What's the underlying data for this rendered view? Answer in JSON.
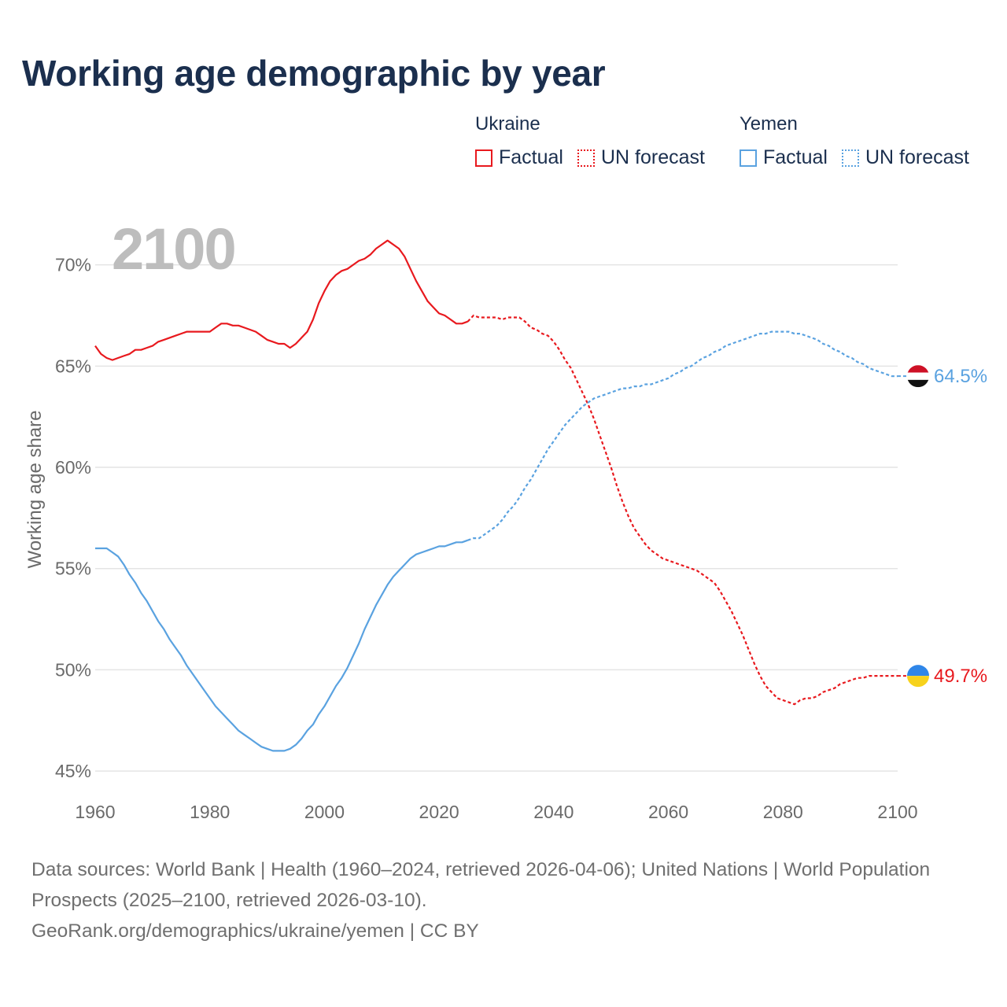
{
  "title": "Working age demographic by year",
  "legend": {
    "groups": [
      {
        "name": "Ukraine",
        "factual_label": "Factual",
        "forecast_label": "UN forecast",
        "color": "#e8191e"
      },
      {
        "name": "Yemen",
        "factual_label": "Factual",
        "forecast_label": "UN forecast",
        "color": "#5aa2e0"
      }
    ]
  },
  "year_watermark": "2100",
  "footer": {
    "line1": "Data sources: World Bank | Health (1960–2024, retrieved 2026-04-06); United Nations | World Population Prospects (2025–2100, retrieved 2026-03-10).",
    "line2": "GeoRank.org/demographics/ukraine/yemen | CC BY"
  },
  "chart_data": {
    "type": "line",
    "title": "Working age demographic by year",
    "xlabel": "",
    "ylabel": "Working age share",
    "xlim": [
      1960,
      2100
    ],
    "ylim": [
      44.5,
      71.5
    ],
    "x_ticks": [
      1960,
      1980,
      2000,
      2020,
      2040,
      2060,
      2080,
      2100
    ],
    "y_ticks": [
      45,
      50,
      55,
      60,
      65,
      70
    ],
    "y_tick_labels": [
      "45%",
      "50%",
      "55%",
      "60%",
      "65%",
      "70%"
    ],
    "grid": true,
    "forecast_start_year": 2025,
    "series": [
      {
        "name": "Ukraine",
        "color": "#e8191e",
        "end_label": "49.7%",
        "points": [
          [
            1960,
            66.0
          ],
          [
            1961,
            65.6
          ],
          [
            1962,
            65.4
          ],
          [
            1963,
            65.3
          ],
          [
            1964,
            65.4
          ],
          [
            1965,
            65.5
          ],
          [
            1966,
            65.6
          ],
          [
            1967,
            65.8
          ],
          [
            1968,
            65.8
          ],
          [
            1969,
            65.9
          ],
          [
            1970,
            66.0
          ],
          [
            1971,
            66.2
          ],
          [
            1972,
            66.3
          ],
          [
            1973,
            66.4
          ],
          [
            1974,
            66.5
          ],
          [
            1975,
            66.6
          ],
          [
            1976,
            66.7
          ],
          [
            1977,
            66.7
          ],
          [
            1978,
            66.7
          ],
          [
            1979,
            66.7
          ],
          [
            1980,
            66.7
          ],
          [
            1981,
            66.9
          ],
          [
            1982,
            67.1
          ],
          [
            1983,
            67.1
          ],
          [
            1984,
            67.0
          ],
          [
            1985,
            67.0
          ],
          [
            1986,
            66.9
          ],
          [
            1987,
            66.8
          ],
          [
            1988,
            66.7
          ],
          [
            1989,
            66.5
          ],
          [
            1990,
            66.3
          ],
          [
            1991,
            66.2
          ],
          [
            1992,
            66.1
          ],
          [
            1993,
            66.1
          ],
          [
            1994,
            65.9
          ],
          [
            1995,
            66.1
          ],
          [
            1996,
            66.4
          ],
          [
            1997,
            66.7
          ],
          [
            1998,
            67.3
          ],
          [
            1999,
            68.1
          ],
          [
            2000,
            68.7
          ],
          [
            2001,
            69.2
          ],
          [
            2002,
            69.5
          ],
          [
            2003,
            69.7
          ],
          [
            2004,
            69.8
          ],
          [
            2005,
            70.0
          ],
          [
            2006,
            70.2
          ],
          [
            2007,
            70.3
          ],
          [
            2008,
            70.5
          ],
          [
            2009,
            70.8
          ],
          [
            2010,
            71.0
          ],
          [
            2011,
            71.2
          ],
          [
            2012,
            71.0
          ],
          [
            2013,
            70.8
          ],
          [
            2014,
            70.4
          ],
          [
            2015,
            69.8
          ],
          [
            2016,
            69.2
          ],
          [
            2017,
            68.7
          ],
          [
            2018,
            68.2
          ],
          [
            2019,
            67.9
          ],
          [
            2020,
            67.6
          ],
          [
            2021,
            67.5
          ],
          [
            2022,
            67.3
          ],
          [
            2023,
            67.1
          ],
          [
            2024,
            67.1
          ],
          [
            2025,
            67.2
          ],
          [
            2026,
            67.5
          ],
          [
            2027,
            67.4
          ],
          [
            2028,
            67.4
          ],
          [
            2029,
            67.4
          ],
          [
            2030,
            67.4
          ],
          [
            2031,
            67.3
          ],
          [
            2032,
            67.4
          ],
          [
            2033,
            67.4
          ],
          [
            2034,
            67.4
          ],
          [
            2035,
            67.2
          ],
          [
            2036,
            66.9
          ],
          [
            2037,
            66.8
          ],
          [
            2038,
            66.6
          ],
          [
            2039,
            66.5
          ],
          [
            2040,
            66.2
          ],
          [
            2041,
            65.8
          ],
          [
            2042,
            65.3
          ],
          [
            2043,
            64.9
          ],
          [
            2044,
            64.3
          ],
          [
            2045,
            63.7
          ],
          [
            2046,
            63.1
          ],
          [
            2047,
            62.4
          ],
          [
            2048,
            61.6
          ],
          [
            2049,
            60.8
          ],
          [
            2050,
            60.0
          ],
          [
            2051,
            59.1
          ],
          [
            2052,
            58.3
          ],
          [
            2053,
            57.6
          ],
          [
            2054,
            57.0
          ],
          [
            2055,
            56.6
          ],
          [
            2056,
            56.2
          ],
          [
            2057,
            55.9
          ],
          [
            2058,
            55.7
          ],
          [
            2059,
            55.5
          ],
          [
            2060,
            55.4
          ],
          [
            2061,
            55.3
          ],
          [
            2062,
            55.2
          ],
          [
            2063,
            55.1
          ],
          [
            2064,
            55.0
          ],
          [
            2065,
            54.9
          ],
          [
            2066,
            54.7
          ],
          [
            2067,
            54.5
          ],
          [
            2068,
            54.3
          ],
          [
            2069,
            53.9
          ],
          [
            2070,
            53.4
          ],
          [
            2071,
            52.9
          ],
          [
            2072,
            52.3
          ],
          [
            2073,
            51.7
          ],
          [
            2074,
            51.0
          ],
          [
            2075,
            50.3
          ],
          [
            2076,
            49.7
          ],
          [
            2077,
            49.2
          ],
          [
            2078,
            48.9
          ],
          [
            2079,
            48.6
          ],
          [
            2080,
            48.5
          ],
          [
            2081,
            48.4
          ],
          [
            2082,
            48.3
          ],
          [
            2083,
            48.5
          ],
          [
            2084,
            48.6
          ],
          [
            2085,
            48.6
          ],
          [
            2086,
            48.7
          ],
          [
            2087,
            48.9
          ],
          [
            2088,
            49.0
          ],
          [
            2089,
            49.1
          ],
          [
            2090,
            49.3
          ],
          [
            2091,
            49.4
          ],
          [
            2092,
            49.5
          ],
          [
            2093,
            49.6
          ],
          [
            2094,
            49.6
          ],
          [
            2095,
            49.7
          ],
          [
            2096,
            49.7
          ],
          [
            2097,
            49.7
          ],
          [
            2098,
            49.7
          ],
          [
            2099,
            49.7
          ],
          [
            2100,
            49.7
          ]
        ]
      },
      {
        "name": "Yemen",
        "color": "#5aa2e0",
        "end_label": "64.5%",
        "points": [
          [
            1960,
            56.0
          ],
          [
            1961,
            56.0
          ],
          [
            1962,
            56.0
          ],
          [
            1963,
            55.8
          ],
          [
            1964,
            55.6
          ],
          [
            1965,
            55.2
          ],
          [
            1966,
            54.7
          ],
          [
            1967,
            54.3
          ],
          [
            1968,
            53.8
          ],
          [
            1969,
            53.4
          ],
          [
            1970,
            52.9
          ],
          [
            1971,
            52.4
          ],
          [
            1972,
            52.0
          ],
          [
            1973,
            51.5
          ],
          [
            1974,
            51.1
          ],
          [
            1975,
            50.7
          ],
          [
            1976,
            50.2
          ],
          [
            1977,
            49.8
          ],
          [
            1978,
            49.4
          ],
          [
            1979,
            49.0
          ],
          [
            1980,
            48.6
          ],
          [
            1981,
            48.2
          ],
          [
            1982,
            47.9
          ],
          [
            1983,
            47.6
          ],
          [
            1984,
            47.3
          ],
          [
            1985,
            47.0
          ],
          [
            1986,
            46.8
          ],
          [
            1987,
            46.6
          ],
          [
            1988,
            46.4
          ],
          [
            1989,
            46.2
          ],
          [
            1990,
            46.1
          ],
          [
            1991,
            46.0
          ],
          [
            1992,
            46.0
          ],
          [
            1993,
            46.0
          ],
          [
            1994,
            46.1
          ],
          [
            1995,
            46.3
          ],
          [
            1996,
            46.6
          ],
          [
            1997,
            47.0
          ],
          [
            1998,
            47.3
          ],
          [
            1999,
            47.8
          ],
          [
            2000,
            48.2
          ],
          [
            2001,
            48.7
          ],
          [
            2002,
            49.2
          ],
          [
            2003,
            49.6
          ],
          [
            2004,
            50.1
          ],
          [
            2005,
            50.7
          ],
          [
            2006,
            51.3
          ],
          [
            2007,
            52.0
          ],
          [
            2008,
            52.6
          ],
          [
            2009,
            53.2
          ],
          [
            2010,
            53.7
          ],
          [
            2011,
            54.2
          ],
          [
            2012,
            54.6
          ],
          [
            2013,
            54.9
          ],
          [
            2014,
            55.2
          ],
          [
            2015,
            55.5
          ],
          [
            2016,
            55.7
          ],
          [
            2017,
            55.8
          ],
          [
            2018,
            55.9
          ],
          [
            2019,
            56.0
          ],
          [
            2020,
            56.1
          ],
          [
            2021,
            56.1
          ],
          [
            2022,
            56.2
          ],
          [
            2023,
            56.3
          ],
          [
            2024,
            56.3
          ],
          [
            2025,
            56.4
          ],
          [
            2026,
            56.5
          ],
          [
            2027,
            56.5
          ],
          [
            2028,
            56.7
          ],
          [
            2029,
            56.9
          ],
          [
            2030,
            57.1
          ],
          [
            2031,
            57.4
          ],
          [
            2032,
            57.8
          ],
          [
            2033,
            58.1
          ],
          [
            2034,
            58.5
          ],
          [
            2035,
            59.0
          ],
          [
            2036,
            59.4
          ],
          [
            2037,
            59.9
          ],
          [
            2038,
            60.4
          ],
          [
            2039,
            60.9
          ],
          [
            2040,
            61.3
          ],
          [
            2041,
            61.7
          ],
          [
            2042,
            62.1
          ],
          [
            2043,
            62.4
          ],
          [
            2044,
            62.7
          ],
          [
            2045,
            63.0
          ],
          [
            2046,
            63.2
          ],
          [
            2047,
            63.4
          ],
          [
            2048,
            63.5
          ],
          [
            2049,
            63.6
          ],
          [
            2050,
            63.7
          ],
          [
            2051,
            63.8
          ],
          [
            2052,
            63.9
          ],
          [
            2053,
            63.9
          ],
          [
            2054,
            64.0
          ],
          [
            2055,
            64.0
          ],
          [
            2056,
            64.1
          ],
          [
            2057,
            64.1
          ],
          [
            2058,
            64.2
          ],
          [
            2059,
            64.3
          ],
          [
            2060,
            64.4
          ],
          [
            2061,
            64.6
          ],
          [
            2062,
            64.7
          ],
          [
            2063,
            64.9
          ],
          [
            2064,
            65.0
          ],
          [
            2065,
            65.2
          ],
          [
            2066,
            65.4
          ],
          [
            2067,
            65.5
          ],
          [
            2068,
            65.7
          ],
          [
            2069,
            65.8
          ],
          [
            2070,
            66.0
          ],
          [
            2071,
            66.1
          ],
          [
            2072,
            66.2
          ],
          [
            2073,
            66.3
          ],
          [
            2074,
            66.4
          ],
          [
            2075,
            66.5
          ],
          [
            2076,
            66.6
          ],
          [
            2077,
            66.6
          ],
          [
            2078,
            66.7
          ],
          [
            2079,
            66.7
          ],
          [
            2080,
            66.7
          ],
          [
            2081,
            66.7
          ],
          [
            2082,
            66.6
          ],
          [
            2083,
            66.6
          ],
          [
            2084,
            66.5
          ],
          [
            2085,
            66.4
          ],
          [
            2086,
            66.3
          ],
          [
            2087,
            66.1
          ],
          [
            2088,
            66.0
          ],
          [
            2089,
            65.8
          ],
          [
            2090,
            65.7
          ],
          [
            2091,
            65.5
          ],
          [
            2092,
            65.4
          ],
          [
            2093,
            65.2
          ],
          [
            2094,
            65.1
          ],
          [
            2095,
            64.9
          ],
          [
            2096,
            64.8
          ],
          [
            2097,
            64.7
          ],
          [
            2098,
            64.6
          ],
          [
            2099,
            64.5
          ],
          [
            2100,
            64.5
          ]
        ]
      }
    ]
  }
}
